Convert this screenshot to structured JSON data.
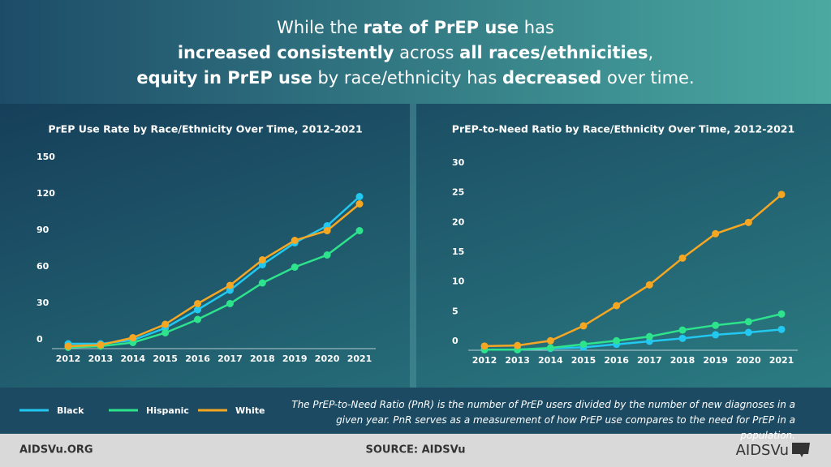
{
  "headline": {
    "lines": [
      [
        {
          "text": "While the ",
          "bold": false
        },
        {
          "text": "rate of PrEP use",
          "bold": true
        },
        {
          "text": " has",
          "bold": false
        }
      ],
      [
        {
          "text": "increased consistently",
          "bold": true
        },
        {
          "text": " across ",
          "bold": false
        },
        {
          "text": "all races/ethnicities",
          "bold": true
        },
        {
          "text": ",",
          "bold": false
        }
      ],
      [
        {
          "text": "equity in PrEP use",
          "bold": true
        },
        {
          "text": " by race/ethnicity has ",
          "bold": false
        },
        {
          "text": "decreased",
          "bold": true
        },
        {
          "text": " over time.",
          "bold": false
        }
      ]
    ]
  },
  "chart_data": [
    {
      "type": "line",
      "title": "PrEP Use Rate by Race/Ethnicity Over Time, 2012-2021",
      "categories": [
        "2012",
        "2013",
        "2014",
        "2015",
        "2016",
        "2017",
        "2018",
        "2019",
        "2020",
        "2021"
      ],
      "ylim": [
        0,
        150
      ],
      "yticks": [
        0,
        30,
        60,
        90,
        120,
        150
      ],
      "grid": false,
      "legend": "bottom",
      "series": [
        {
          "name": "Black",
          "color": "#22c8f0",
          "values": [
            4,
            4,
            7,
            17,
            32,
            48,
            69,
            87,
            101,
            125
          ]
        },
        {
          "name": "Hispanic",
          "color": "#2de38c",
          "values": [
            1,
            2,
            5,
            13,
            24,
            37,
            54,
            67,
            77,
            97
          ]
        },
        {
          "name": "White",
          "color": "#f5a623",
          "values": [
            2,
            3,
            9,
            20,
            37,
            52,
            73,
            89,
            97,
            119
          ]
        }
      ]
    },
    {
      "type": "line",
      "title": "PrEP-to-Need Ratio by Race/Ethnicity Over Time, 2012-2021",
      "categories": [
        "2012",
        "2013",
        "2014",
        "2015",
        "2016",
        "2017",
        "2018",
        "2019",
        "2020",
        "2021"
      ],
      "ylim": [
        0,
        30
      ],
      "yticks": [
        0,
        5,
        10,
        15,
        20,
        25,
        30
      ],
      "grid": false,
      "series": [
        {
          "name": "Black",
          "color": "#22c8f0",
          "values": [
            0.1,
            0.1,
            0.3,
            0.5,
            1,
            1.5,
            2,
            2.6,
            3,
            3.5
          ]
        },
        {
          "name": "Hispanic",
          "color": "#2de38c",
          "values": [
            0.1,
            0.1,
            0.4,
            1,
            1.6,
            2.3,
            3.4,
            4.2,
            4.8,
            6.1
          ]
        },
        {
          "name": "White",
          "color": "#f5a623",
          "values": [
            0.7,
            0.8,
            1.6,
            4.1,
            7.5,
            11,
            15.5,
            19.6,
            21.5,
            26.2
          ]
        }
      ]
    }
  ],
  "note": "The PrEP-to-Need Ratio (PnR) is the number of PrEP users divided by the number of new diagnoses in a given year. PnR serves as a measurement of how PrEP use compares to the need for PrEP in a population.",
  "footer": {
    "left": "AIDSVu.ORG",
    "center": "SOURCE: AIDSVu",
    "logo": "AIDSVu"
  }
}
